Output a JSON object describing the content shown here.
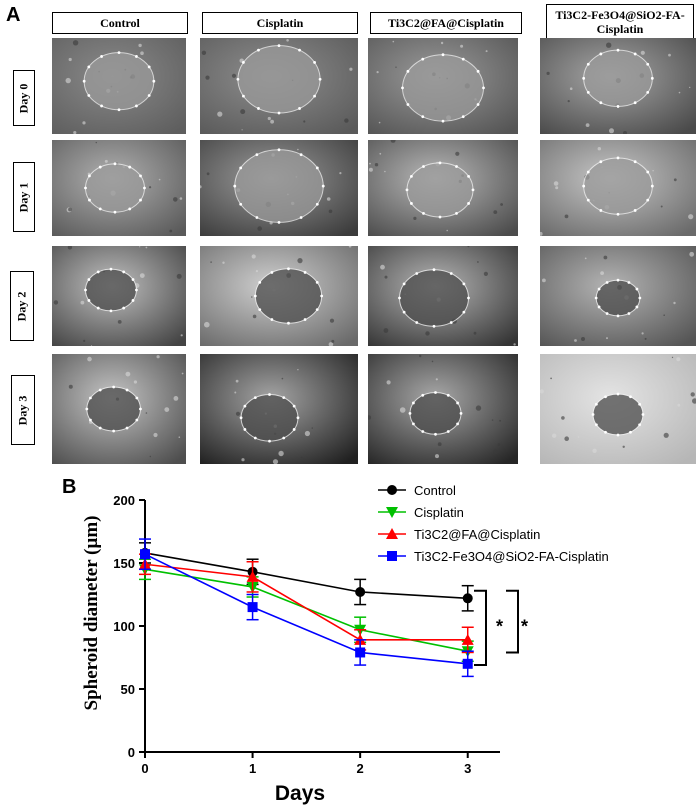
{
  "panel_a": {
    "letter": "A",
    "columns": [
      "Control",
      "Cisplatin",
      "Ti3C2@FA@Cisplatin",
      "Ti3C2-Fe3O4@SiO2-FA-Cisplatin"
    ],
    "rows": [
      "Day 0",
      "Day 1",
      "Day 2",
      "Day 3"
    ]
  },
  "panel_b": {
    "letter": "B",
    "significance_marks": [
      "*",
      "*"
    ]
  },
  "chart_data": {
    "type": "line",
    "title": "",
    "xlabel": "Days",
    "ylabel": "Spheroid diameter (µm)",
    "x": [
      0,
      1,
      2,
      3
    ],
    "xlim": [
      0,
      3.3
    ],
    "ylim": [
      0,
      200
    ],
    "xticks": [
      "0",
      "1",
      "2",
      "3"
    ],
    "yticks": [
      "0",
      "50",
      "100",
      "150",
      "200"
    ],
    "legend_position": "top-right",
    "series": [
      {
        "name": "Control",
        "values": [
          158,
          143,
          127,
          122
        ],
        "errors": [
          8,
          10,
          10,
          10
        ],
        "color": "#000000",
        "marker": "circle"
      },
      {
        "name": "Cisplatin",
        "values": [
          145,
          131,
          97,
          80
        ],
        "errors": [
          8,
          8,
          10,
          8
        ],
        "color": "#00c000",
        "marker": "triangle-down"
      },
      {
        "name": "Ti3C2@FA@Cisplatin",
        "values": [
          149,
          139,
          89,
          89
        ],
        "errors": [
          8,
          12,
          8,
          10
        ],
        "color": "#ff0000",
        "marker": "triangle-up"
      },
      {
        "name": "Ti3C2-Fe3O4@SiO2-FA-Cisplatin",
        "values": [
          157,
          115,
          79,
          70
        ],
        "errors": [
          12,
          10,
          10,
          10
        ],
        "color": "#0000ff",
        "marker": "square"
      }
    ]
  }
}
